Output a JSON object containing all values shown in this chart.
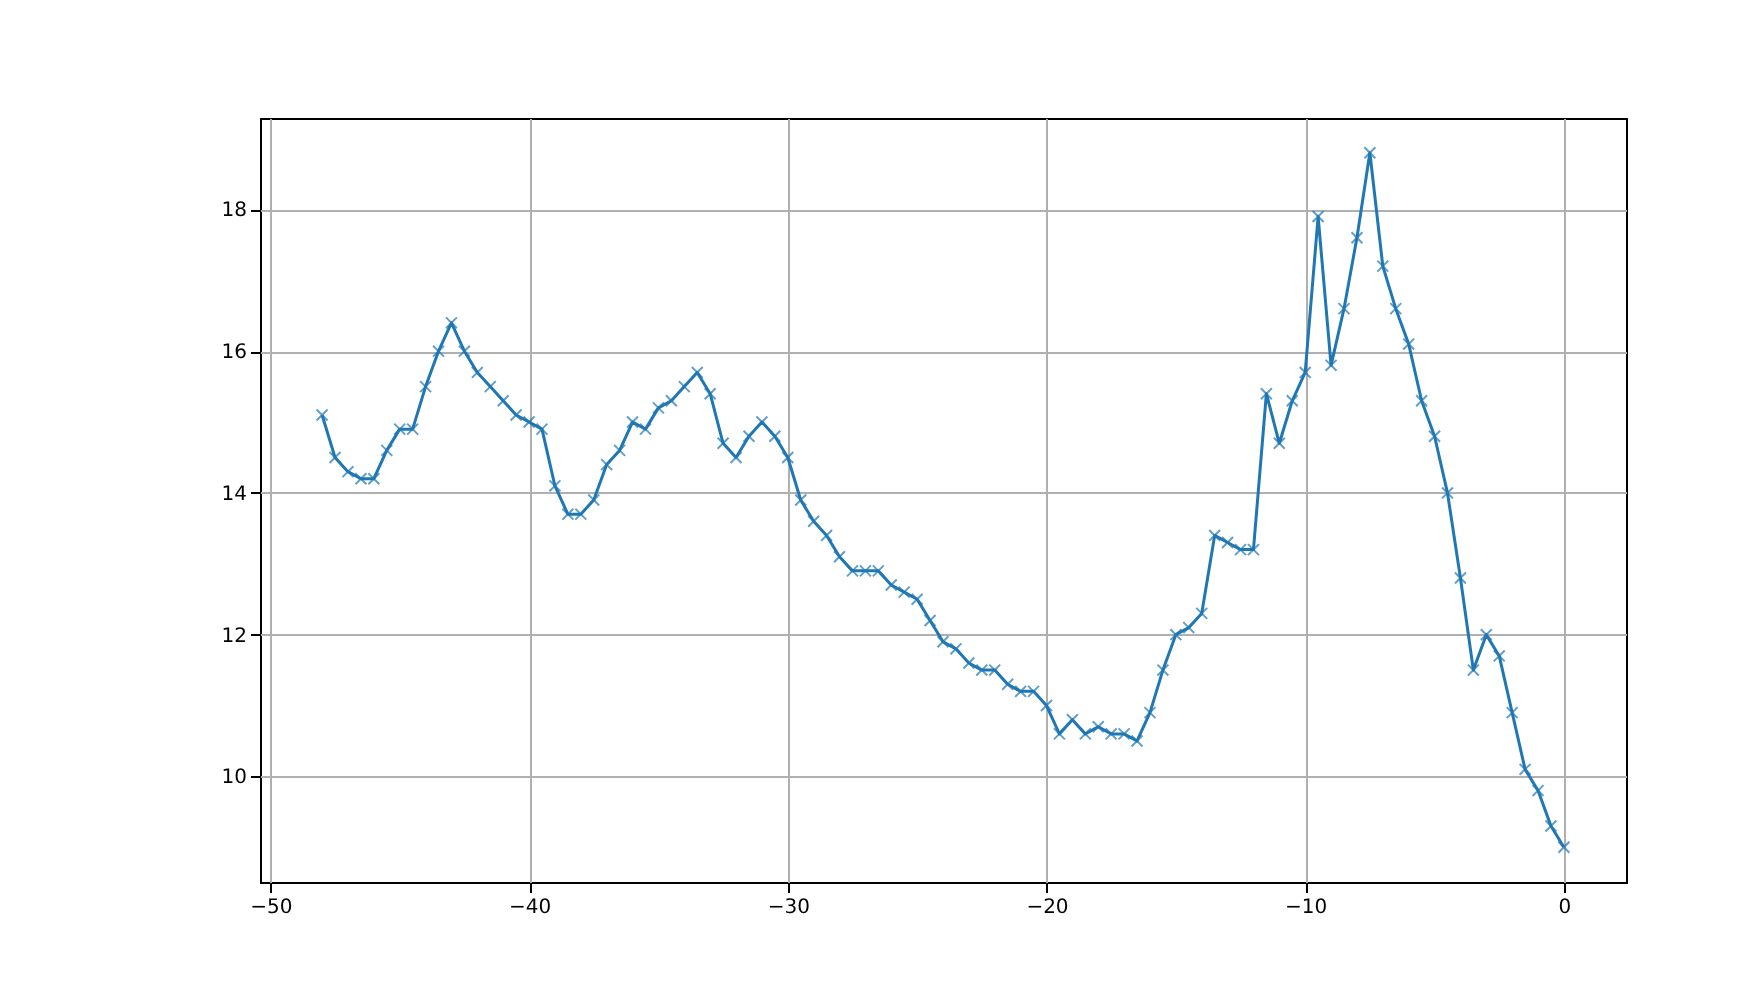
{
  "chart_data": {
    "type": "line",
    "x": [
      -48,
      -47.5,
      -47,
      -46.5,
      -46,
      -45.5,
      -45,
      -44.5,
      -44,
      -43.5,
      -43,
      -42.5,
      -42,
      -41.5,
      -41,
      -40.5,
      -40,
      -39.5,
      -39,
      -38.5,
      -38,
      -37.5,
      -37,
      -36.5,
      -36,
      -35.5,
      -35,
      -34.5,
      -34,
      -33.5,
      -33,
      -32.5,
      -32,
      -31.5,
      -31,
      -30.5,
      -30,
      -29.5,
      -29,
      -28.5,
      -28,
      -27.5,
      -27,
      -26.5,
      -26,
      -25.5,
      -25,
      -24.5,
      -24,
      -23.5,
      -23,
      -22.5,
      -22,
      -21.5,
      -21,
      -20.5,
      -20,
      -19.5,
      -19,
      -18.5,
      -18,
      -17.5,
      -17,
      -16.5,
      -16,
      -15.5,
      -15,
      -14.5,
      -14,
      -13.5,
      -13,
      -12.5,
      -12,
      -11.5,
      -11,
      -10.5,
      -10,
      -9.5,
      -9,
      -8.5,
      -8,
      -7.5,
      -7,
      -6.5,
      -6,
      -5.5,
      -5,
      -4.5,
      -4,
      -3.5,
      -3,
      -2.5,
      -2,
      -1.5,
      -1,
      -0.5,
      0
    ],
    "series": [
      {
        "color": "#1f77b4",
        "values": [
          15.1,
          14.5,
          14.3,
          14.2,
          14.2,
          14.6,
          14.9,
          14.9,
          15.5,
          16.0,
          16.4,
          16.0,
          15.7,
          15.5,
          15.3,
          15.1,
          15.0,
          14.9,
          14.1,
          13.7,
          13.7,
          13.9,
          14.4,
          14.6,
          15.0,
          14.9,
          15.2,
          15.3,
          15.5,
          15.7,
          15.4,
          14.7,
          14.5,
          14.8,
          15.0,
          14.8,
          14.5,
          13.9,
          13.6,
          13.4,
          13.1,
          12.9,
          12.9,
          12.9,
          12.7,
          12.6,
          12.5,
          12.2,
          11.9,
          11.8,
          11.6,
          11.5,
          11.5,
          11.3,
          11.2,
          11.2,
          11.0,
          10.6,
          10.8,
          10.6,
          10.7,
          10.6,
          10.6,
          10.5,
          10.9,
          11.5,
          12.0,
          12.1,
          12.3,
          13.4,
          13.3,
          13.2,
          13.2,
          15.4,
          14.7,
          15.3,
          15.7,
          17.9,
          15.8,
          16.6,
          17.6,
          18.8,
          17.2,
          16.6,
          16.1,
          15.3,
          14.8,
          14.0,
          12.8,
          11.5,
          12.0,
          11.7,
          10.9,
          10.1,
          9.8,
          9.3,
          9.0
        ]
      }
    ],
    "xlim": [
      -50.4,
      2.4
    ],
    "xticks": [
      -50,
      -40,
      -30,
      -20,
      -10,
      0
    ],
    "ylim": [
      8.51,
      19.29
    ],
    "yticks": [
      10,
      12,
      14,
      16,
      18
    ],
    "grid": true,
    "marker": "cross",
    "line_style": "solid"
  }
}
